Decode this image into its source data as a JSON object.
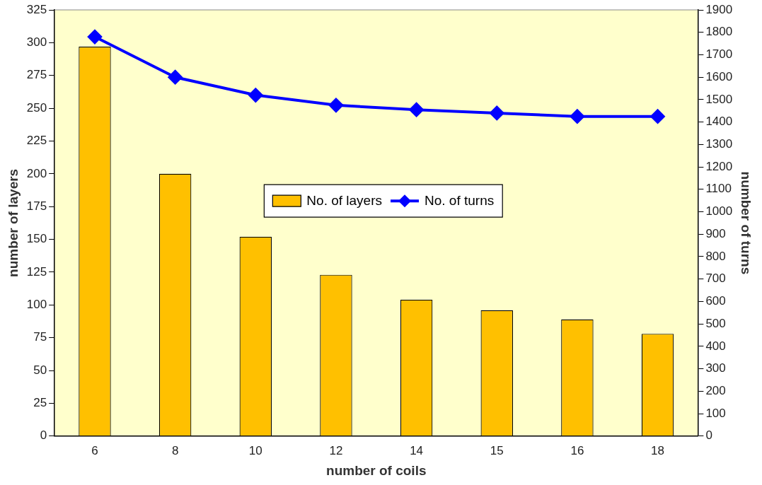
{
  "chart_data": {
    "type": "bar",
    "categories": [
      "6",
      "8",
      "10",
      "12",
      "14",
      "15",
      "16",
      "18"
    ],
    "xlabel": "number of coils",
    "ylabel": "number of layers",
    "y2label": "number of turns",
    "series": [
      {
        "name": "No. of layers",
        "color": "#ffc000",
        "values": [
          297,
          200,
          152,
          123,
          104,
          96,
          89,
          78
        ]
      },
      {
        "name": "No. of turns",
        "type": "line",
        "axis": "y2",
        "color": "#0000ff",
        "marker": "diamond",
        "values": [
          1780,
          1600,
          1520,
          1475,
          1455,
          1440,
          1425,
          1425
        ]
      }
    ],
    "ylim": [
      0,
      325
    ],
    "yticks": [
      0,
      25,
      50,
      75,
      100,
      125,
      150,
      175,
      200,
      225,
      250,
      275,
      300,
      325
    ],
    "y2lim": [
      0,
      1900
    ],
    "y2ticks": [
      0,
      100,
      200,
      300,
      400,
      500,
      600,
      700,
      800,
      900,
      1000,
      1100,
      1200,
      1300,
      1400,
      1500,
      1600,
      1700,
      1800,
      1900
    ],
    "grid": false,
    "legend": "center"
  }
}
